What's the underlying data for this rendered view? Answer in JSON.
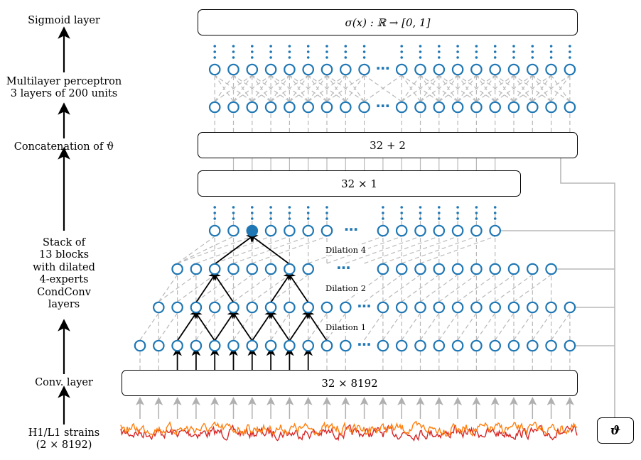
{
  "labels": {
    "sigmoid": "Sigmoid layer",
    "mlp_line1": "Multilayer perceptron",
    "mlp_line2": "3 layers of 200 units",
    "concat": "Concatenation of ϑ",
    "stack_line1": "Stack of",
    "stack_line2": "13 blocks",
    "stack_line3": "with dilated",
    "stack_line4": "4-experts",
    "stack_line5": "CondConv",
    "stack_line6": "layers",
    "conv": "Conv. layer",
    "strains_line1": "H1/L1 strains",
    "strains_line2": "(2 × 8192)"
  },
  "boxes": {
    "sigmoid": "σ(x) : ℝ → [0, 1]",
    "concat": "32 + 2",
    "reduce": "32 × 1",
    "conv": "32 × 8192",
    "theta": "ϑ"
  },
  "dilations": {
    "d4": "Dilation 4",
    "d2": "Dilation 2",
    "d1": "Dilation 1"
  },
  "ellipsis": "⋯",
  "colors": {
    "node": "#1f77b4",
    "highlight": "#1f77b4",
    "dashed": "#b8b8b8",
    "signal_h1": "#ff7f0e",
    "signal_l1": "#d62728",
    "arrow_gray": "#b0b0b0"
  }
}
